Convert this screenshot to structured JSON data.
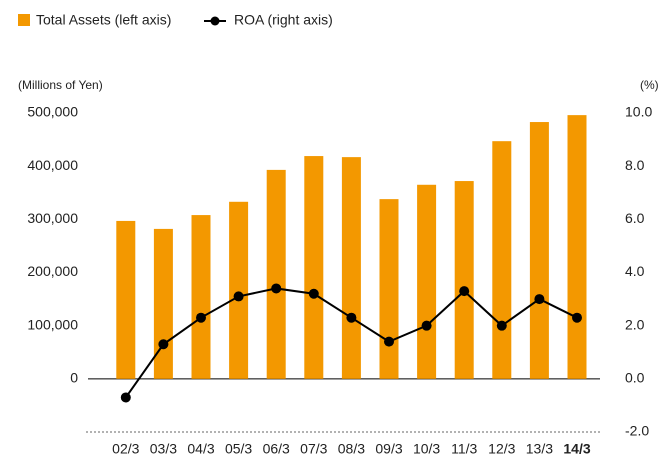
{
  "chart_data": {
    "type": "bar",
    "legend": [
      "Total Assets (left axis)",
      "ROA (right axis)"
    ],
    "ylabel": "(Millions of Yen)",
    "y2label": "(%)",
    "categories": [
      "02/3",
      "03/3",
      "04/3",
      "05/3",
      "06/3",
      "07/3",
      "08/3",
      "09/3",
      "10/3",
      "11/3",
      "12/3",
      "13/3",
      "14/3"
    ],
    "series": [
      {
        "name": "Total Assets (left axis)",
        "type": "bar",
        "color": "#f39800",
        "axis": "y",
        "values": [
          297000,
          282000,
          308000,
          333000,
          393000,
          419000,
          417000,
          338000,
          365000,
          372000,
          447000,
          483000,
          496000
        ]
      },
      {
        "name": "ROA (right axis)",
        "type": "line",
        "color": "#000000",
        "axis": "y2",
        "values": [
          -0.7,
          1.3,
          2.3,
          3.1,
          3.4,
          3.2,
          2.3,
          1.4,
          2.0,
          3.3,
          2.0,
          3.0,
          2.3
        ]
      }
    ],
    "ylim": [
      -100000,
      500000
    ],
    "yticks": [
      {
        "value": 0,
        "label": "0"
      },
      {
        "value": 100000,
        "label": "100,000"
      },
      {
        "value": 200000,
        "label": "200,000"
      },
      {
        "value": 300000,
        "label": "300,000"
      },
      {
        "value": 400000,
        "label": "400,000"
      },
      {
        "value": 500000,
        "label": "500,000"
      }
    ],
    "y2lim": [
      -2,
      10
    ],
    "y2ticks": [
      {
        "value": 10,
        "label": "10.0"
      },
      {
        "value": 8,
        "label": "8.0"
      },
      {
        "value": 6,
        "label": "6.0"
      },
      {
        "value": 4,
        "label": "4.0"
      },
      {
        "value": 2,
        "label": "2.0"
      },
      {
        "value": 0,
        "label": "0.0"
      },
      {
        "value": -2,
        "label": "-2.0"
      }
    ],
    "grid": false
  }
}
